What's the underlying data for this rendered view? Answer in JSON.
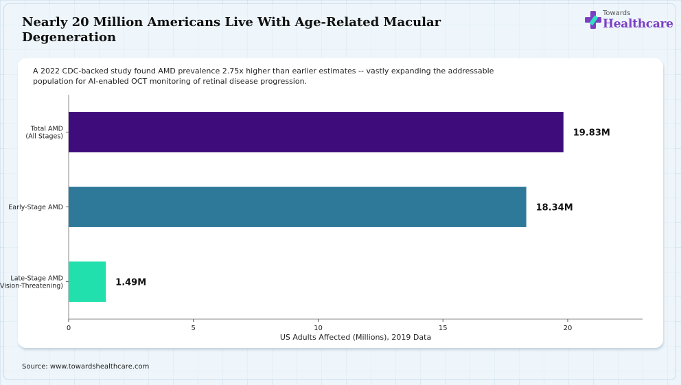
{
  "header": {
    "title": "Nearly 20 Million Americans Live With Age-Related Macular Degeneration",
    "subtitle": "A 2022 CDC-backed study found AMD prevalence 2.75x higher than earlier estimates -- vastly expanding the addressable population for AI-enabled OCT monitoring of retinal disease progression."
  },
  "logo": {
    "top": "Towards",
    "bottom": "Healthcare"
  },
  "source": "Source: www.towardshealthcare.com",
  "chart_data": {
    "type": "bar",
    "orientation": "horizontal",
    "categories": [
      [
        "Total AMD",
        "(All Stages)"
      ],
      [
        "Early-Stage AMD"
      ],
      [
        "Late-Stage AMD",
        "(Vision-Threatening)"
      ]
    ],
    "values": [
      19.83,
      18.34,
      1.49
    ],
    "value_labels": [
      "19.83M",
      "18.34M",
      "1.49M"
    ],
    "colors": [
      "#3f0c7c",
      "#2e7999",
      "#22e0ad"
    ],
    "xlabel": "US Adults Affected (Millions), 2019 Data",
    "xlim": [
      0,
      23
    ],
    "xticks": [
      0,
      5,
      10,
      15,
      20
    ],
    "grid": false
  }
}
